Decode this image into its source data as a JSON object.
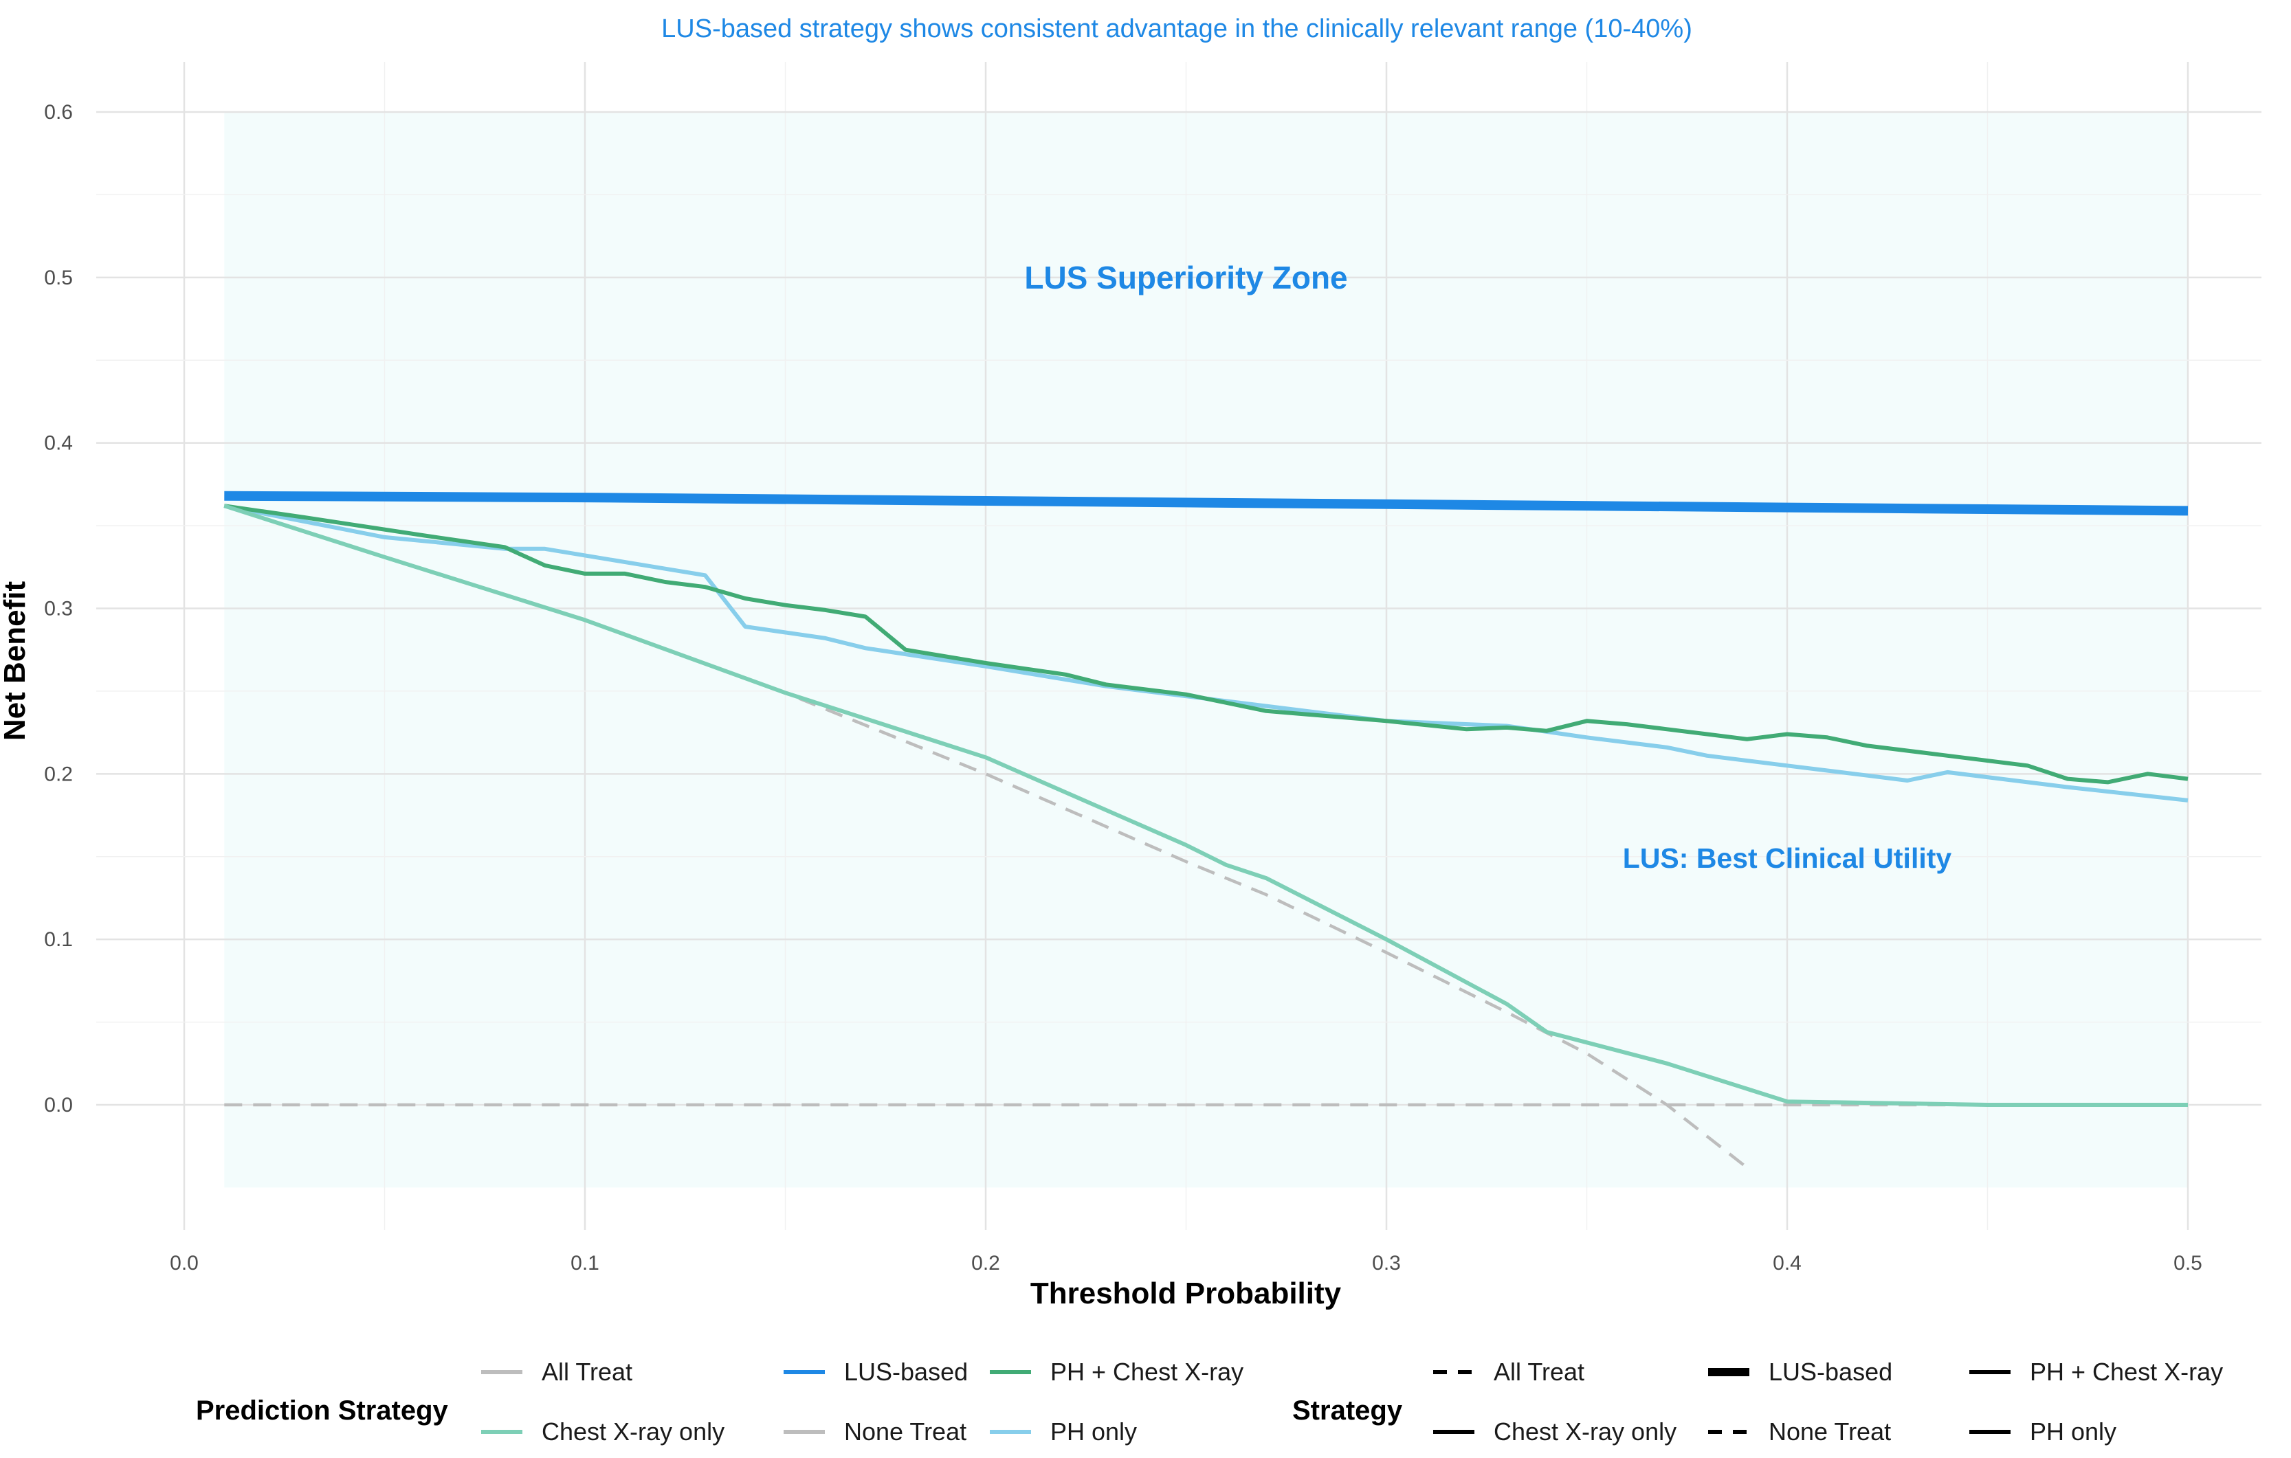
{
  "chart_data": {
    "type": "line",
    "subtitle": "LUS-based strategy shows consistent advantage in the clinically relevant range (10-40%)",
    "xlabel": "Threshold Probability",
    "ylabel": "Net Benefit",
    "xlim": [
      0.0,
      0.5
    ],
    "ylim": [
      -0.05,
      0.62
    ],
    "x_ticks": [
      "0.0",
      "0.1",
      "0.2",
      "0.3",
      "0.4",
      "0.5"
    ],
    "y_ticks": [
      "0.0",
      "0.1",
      "0.2",
      "0.3",
      "0.4",
      "0.5",
      "0.6"
    ],
    "grid": true,
    "shaded_region": {
      "x": [
        0.01,
        0.5
      ],
      "y": [
        -0.05,
        0.6
      ],
      "color": "#F3FCFC"
    },
    "annotations": [
      {
        "text": "LUS Superiority Zone",
        "x": 0.25,
        "y": 0.5
      },
      {
        "text": "LUS: Best Clinical Utility",
        "x": 0.4,
        "y": 0.15
      }
    ],
    "series": [
      {
        "name": "All Treat",
        "color": "#BDBDBD",
        "dash": "dashed",
        "width": "thin",
        "x": [
          0.01,
          0.05,
          0.1,
          0.15,
          0.2,
          0.25,
          0.27,
          0.3,
          0.33,
          0.35,
          0.37,
          0.39
        ],
        "y": [
          0.362,
          0.331,
          0.293,
          0.249,
          0.2,
          0.147,
          0.127,
          0.092,
          0.056,
          0.031,
          0.0,
          -0.038
        ]
      },
      {
        "name": "Chest X-ray only",
        "color": "#7DCFB6",
        "dash": "solid",
        "width": "normal",
        "x": [
          0.01,
          0.05,
          0.1,
          0.15,
          0.2,
          0.25,
          0.26,
          0.27,
          0.3,
          0.33,
          0.34,
          0.37,
          0.4,
          0.45,
          0.5
        ],
        "y": [
          0.362,
          0.331,
          0.293,
          0.249,
          0.21,
          0.157,
          0.145,
          0.137,
          0.1,
          0.061,
          0.044,
          0.025,
          0.002,
          0.0,
          0.0
        ]
      },
      {
        "name": "LUS-based",
        "color": "#1E88E5",
        "dash": "solid",
        "width": "thick",
        "x": [
          0.01,
          0.1,
          0.2,
          0.3,
          0.4,
          0.5
        ],
        "y": [
          0.368,
          0.367,
          0.365,
          0.363,
          0.361,
          0.359
        ]
      },
      {
        "name": "None Treat",
        "color": "#BDBDBD",
        "dash": "dashed",
        "width": "thin",
        "x": [
          0.01,
          0.5
        ],
        "y": [
          0.0,
          0.0
        ]
      },
      {
        "name": "PH + Chest X-ray",
        "color": "#41AB75",
        "dash": "solid",
        "width": "normal",
        "x": [
          0.01,
          0.03,
          0.06,
          0.08,
          0.09,
          0.1,
          0.11,
          0.12,
          0.13,
          0.14,
          0.15,
          0.16,
          0.17,
          0.18,
          0.2,
          0.22,
          0.23,
          0.25,
          0.27,
          0.28,
          0.3,
          0.32,
          0.33,
          0.34,
          0.35,
          0.36,
          0.37,
          0.38,
          0.39,
          0.4,
          0.41,
          0.42,
          0.44,
          0.46,
          0.47,
          0.48,
          0.49,
          0.5
        ],
        "y": [
          0.362,
          0.355,
          0.344,
          0.337,
          0.326,
          0.321,
          0.321,
          0.316,
          0.313,
          0.306,
          0.302,
          0.299,
          0.295,
          0.275,
          0.267,
          0.26,
          0.254,
          0.248,
          0.238,
          0.236,
          0.232,
          0.227,
          0.228,
          0.226,
          0.232,
          0.23,
          0.227,
          0.224,
          0.221,
          0.224,
          0.222,
          0.217,
          0.211,
          0.205,
          0.197,
          0.195,
          0.2,
          0.197
        ]
      },
      {
        "name": "PH only",
        "color": "#87CEEB",
        "dash": "solid",
        "width": "normal",
        "x": [
          0.01,
          0.05,
          0.08,
          0.09,
          0.1,
          0.11,
          0.12,
          0.13,
          0.14,
          0.16,
          0.17,
          0.2,
          0.23,
          0.26,
          0.3,
          0.33,
          0.35,
          0.37,
          0.38,
          0.4,
          0.42,
          0.43,
          0.44,
          0.47,
          0.5
        ],
        "y": [
          0.362,
          0.343,
          0.336,
          0.336,
          0.332,
          0.328,
          0.324,
          0.32,
          0.289,
          0.282,
          0.276,
          0.265,
          0.253,
          0.244,
          0.232,
          0.229,
          0.222,
          0.216,
          0.211,
          0.205,
          0.199,
          0.196,
          0.201,
          0.192,
          0.184
        ]
      }
    ],
    "legends": [
      {
        "title": "Prediction Strategy",
        "style": "color",
        "items": [
          "All Treat",
          "LUS-based",
          "PH + Chest X-ray",
          "Chest X-ray only",
          "None Treat",
          "PH only"
        ]
      },
      {
        "title": "Strategy",
        "style": "linetype",
        "items": [
          "All Treat",
          "LUS-based",
          "PH + Chest X-ray",
          "Chest X-ray only",
          "None Treat",
          "PH only"
        ]
      }
    ],
    "legend_position": "bottom"
  }
}
